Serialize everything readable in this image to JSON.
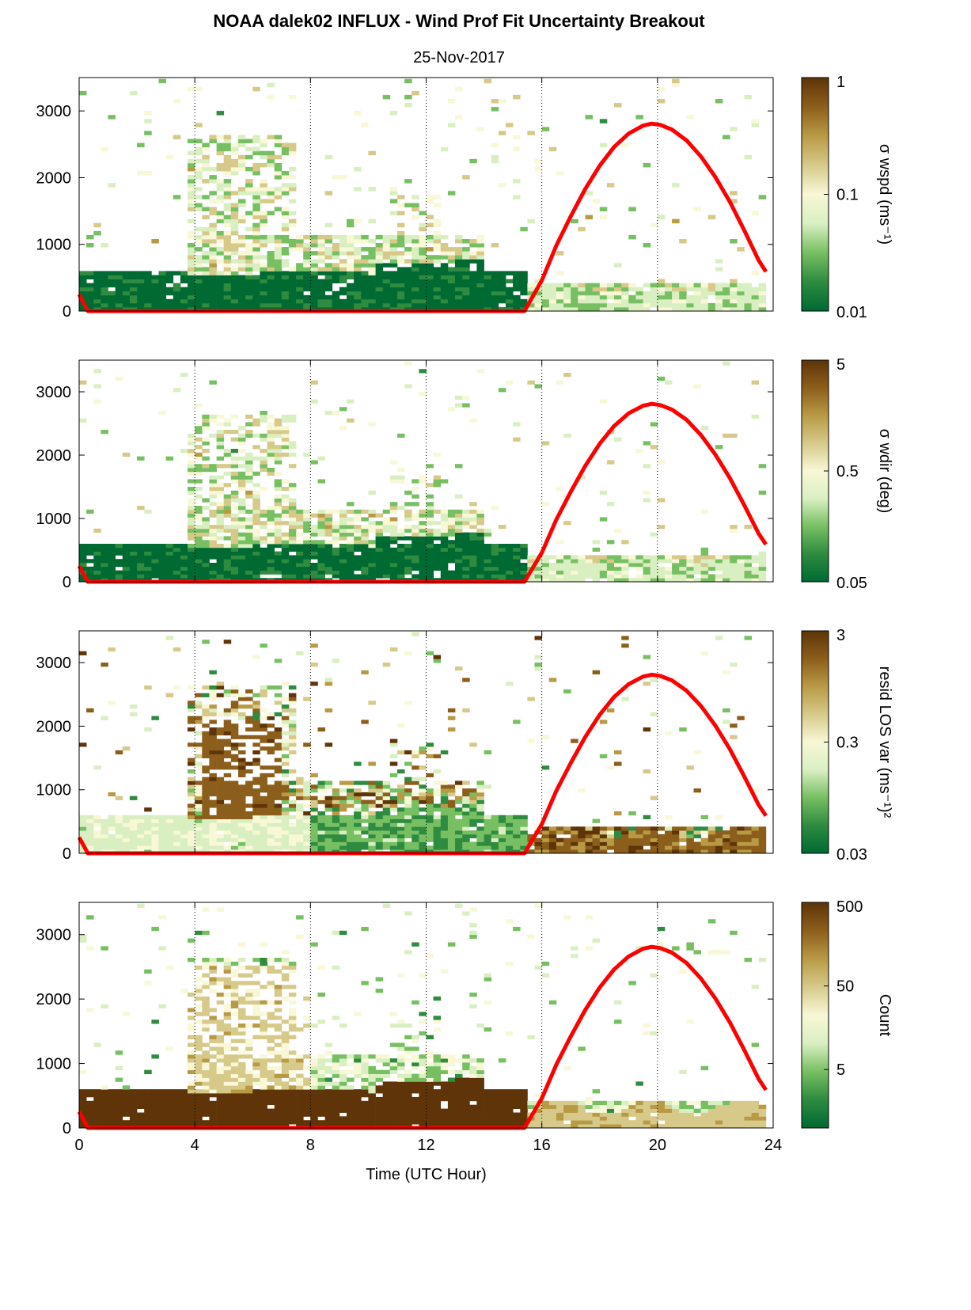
{
  "figure": {
    "title": "NOAA dalek02 INFLUX - Wind Prof Fit Uncertainty Breakout",
    "date": "25-Nov-2017"
  },
  "colors": {
    "sun_line": "#ff0000",
    "colormap": [
      "#006a33",
      "#2e8b40",
      "#77bf62",
      "#d9efc2",
      "#f8f7d6",
      "#d6c98a",
      "#b89a45",
      "#8c5e1c",
      "#5e3408"
    ]
  },
  "chart_data": [
    {
      "type": "heatmap",
      "title": "",
      "xlabel": "",
      "ylabel": "",
      "colorbar_label": "σ wspd (ms⁻¹)",
      "colorbar_ticks": [
        "1",
        "0.1",
        "0.01"
      ],
      "colorbar_scale": "log",
      "colorbar_range": [
        0.01,
        1
      ],
      "xlim": [
        0,
        24
      ],
      "ylim": [
        0,
        3500
      ],
      "xticks": [
        "0",
        "4",
        "8",
        "12",
        "16",
        "20",
        "24"
      ],
      "yticks": [
        "0",
        "1000",
        "2000",
        "3000"
      ],
      "grid": "dotted vertical lines at 4-hour intervals",
      "surface_layer": {
        "time_start": 0,
        "time_end": 15.4,
        "depth_m": 600,
        "level": "low"
      }
    },
    {
      "type": "heatmap",
      "title": "",
      "colorbar_label": "σ wdir (deg)",
      "colorbar_ticks": [
        "5",
        "0.5",
        "0.05"
      ],
      "colorbar_scale": "log",
      "colorbar_range": [
        0.05,
        5
      ],
      "xlim": [
        0,
        24
      ],
      "ylim": [
        0,
        3500
      ],
      "xticks": [
        "0",
        "4",
        "8",
        "12",
        "16",
        "20",
        "24"
      ],
      "yticks": [
        "0",
        "1000",
        "2000",
        "3000"
      ]
    },
    {
      "type": "heatmap",
      "title": "",
      "colorbar_label": "resid LOS var (ms⁻¹)²",
      "colorbar_ticks": [
        "3",
        "0.3",
        "0.03"
      ],
      "colorbar_scale": "log",
      "colorbar_range": [
        0.03,
        3
      ],
      "xlim": [
        0,
        24
      ],
      "ylim": [
        0,
        3500
      ],
      "xticks": [
        "0",
        "4",
        "8",
        "12",
        "16",
        "20",
        "24"
      ],
      "yticks": [
        "0",
        "1000",
        "2000",
        "3000"
      ]
    },
    {
      "type": "heatmap",
      "title": "",
      "xlabel": "Time (UTC Hour)",
      "colorbar_label": "Count",
      "colorbar_ticks": [
        "500",
        "50",
        "5"
      ],
      "colorbar_scale": "log",
      "colorbar_range": [
        1,
        500
      ],
      "xlim": [
        0,
        24
      ],
      "ylim": [
        0,
        3500
      ],
      "xticks": [
        "0",
        "4",
        "8",
        "12",
        "16",
        "20",
        "24"
      ],
      "yticks": [
        "0",
        "1000",
        "2000",
        "3000"
      ]
    }
  ],
  "sun_curve": {
    "series_color": "#ff0000",
    "time_h": [
      0.0,
      0.3,
      15.4,
      16.0,
      16.5,
      17.0,
      17.5,
      18.0,
      18.5,
      19.0,
      19.5,
      19.8,
      20.1,
      20.5,
      21.0,
      21.5,
      22.0,
      22.5,
      23.0,
      23.5,
      23.75
    ],
    "height_m": [
      250,
      0,
      0,
      460,
      980,
      1420,
      1830,
      2180,
      2460,
      2660,
      2780,
      2810,
      2790,
      2720,
      2560,
      2320,
      2010,
      1640,
      1210,
      760,
      590
    ]
  }
}
